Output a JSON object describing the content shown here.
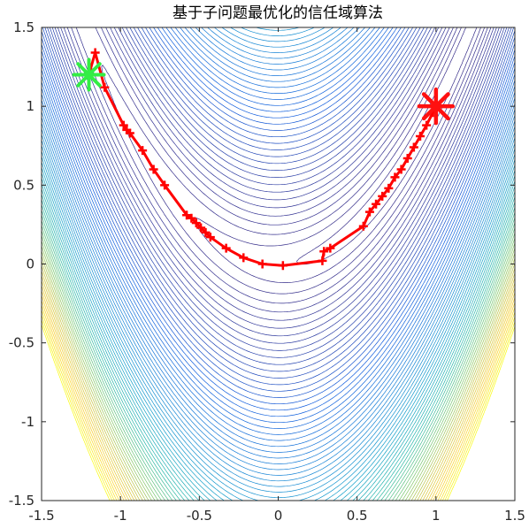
{
  "chart_data": {
    "type": "line",
    "title": "基于子问题最优化的信任域算法",
    "xlabel": "",
    "ylabel": "",
    "xlim": [
      -1.5,
      1.5
    ],
    "ylim": [
      -1.5,
      1.5
    ],
    "x_ticks": [
      -1.5,
      -1,
      -0.5,
      0,
      0.5,
      1,
      1.5
    ],
    "x_tick_labels": [
      "-1.5",
      "-1",
      "-0.5",
      "0",
      "0.5",
      "1",
      "1.5"
    ],
    "y_ticks": [
      -1.5,
      -1,
      -0.5,
      0,
      0.5,
      1,
      1.5
    ],
    "y_tick_labels": [
      "-1.5",
      "-1",
      "-0.5",
      "0",
      "0.5",
      "1",
      "1.5"
    ],
    "grid": false,
    "background": {
      "type": "contour",
      "function": "Rosenbrock f(x,y) = (1-x)^2 + 100*(y-x^2)^2",
      "colormap": "parula"
    },
    "series": [
      {
        "type": "line",
        "color": "#ff0000",
        "marker": "plus",
        "x": [
          -1.2,
          -1.16,
          -1.1,
          -0.98,
          -0.96,
          -0.94,
          -0.86,
          -0.79,
          -0.72,
          -0.58,
          -0.55,
          -0.52,
          -0.49,
          -0.46,
          -0.43,
          -0.33,
          -0.22,
          -0.1,
          0.03,
          0.28,
          0.29,
          0.33,
          0.54,
          0.58,
          0.62,
          0.66,
          0.7,
          0.74,
          0.78,
          0.82,
          0.86,
          0.9,
          0.94,
          0.98,
          1.0
        ],
        "y": [
          1.2,
          1.34,
          1.12,
          0.88,
          0.85,
          0.83,
          0.72,
          0.6,
          0.5,
          0.31,
          0.29,
          0.26,
          0.23,
          0.2,
          0.17,
          0.1,
          0.04,
          0.0,
          -0.01,
          0.02,
          0.08,
          0.1,
          0.24,
          0.33,
          0.38,
          0.43,
          0.48,
          0.55,
          0.6,
          0.67,
          0.74,
          0.81,
          0.88,
          0.96,
          1.0
        ]
      }
    ],
    "start_marker": {
      "x": -1.2,
      "y": 1.2,
      "color": "#33ee44",
      "symbol": "asterisk"
    },
    "optimum_marker": {
      "x": 1.0,
      "y": 1.0,
      "color": "#ff1010",
      "symbol": "asterisk"
    }
  }
}
